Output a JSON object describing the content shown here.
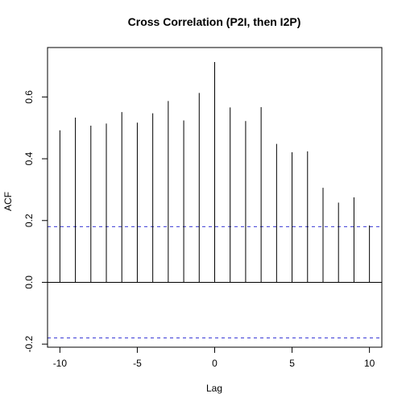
{
  "chart_data": {
    "type": "bar",
    "title": "Cross Correlation (P2I, then I2P)",
    "xlabel": "Lag",
    "ylabel": "ACF",
    "xlim": [
      -10.8,
      10.8
    ],
    "ylim": [
      -0.21,
      0.76
    ],
    "xticks": [
      -10,
      -5,
      0,
      5,
      10
    ],
    "yticks": [
      -0.2,
      0.0,
      0.2,
      0.4,
      0.6
    ],
    "ytick_labels": [
      "-0.2",
      "0.0",
      "0.2",
      "0.4",
      "0.6"
    ],
    "xtick_labels": [
      "-10",
      "-5",
      "0",
      "5",
      "10"
    ],
    "lags": [
      -10,
      -9,
      -8,
      -7,
      -6,
      -5,
      -4,
      -3,
      -2,
      -1,
      0,
      1,
      2,
      3,
      4,
      5,
      6,
      7,
      8,
      9,
      10
    ],
    "values": [
      0.492,
      0.533,
      0.507,
      0.514,
      0.551,
      0.517,
      0.547,
      0.587,
      0.524,
      0.613,
      0.713,
      0.566,
      0.522,
      0.567,
      0.448,
      0.421,
      0.424,
      0.306,
      0.258,
      0.275,
      0.184
    ],
    "confidence_bound": 0.18,
    "confidence_color": "#3a3ad6",
    "bar_color": "#000000",
    "grid": false
  }
}
